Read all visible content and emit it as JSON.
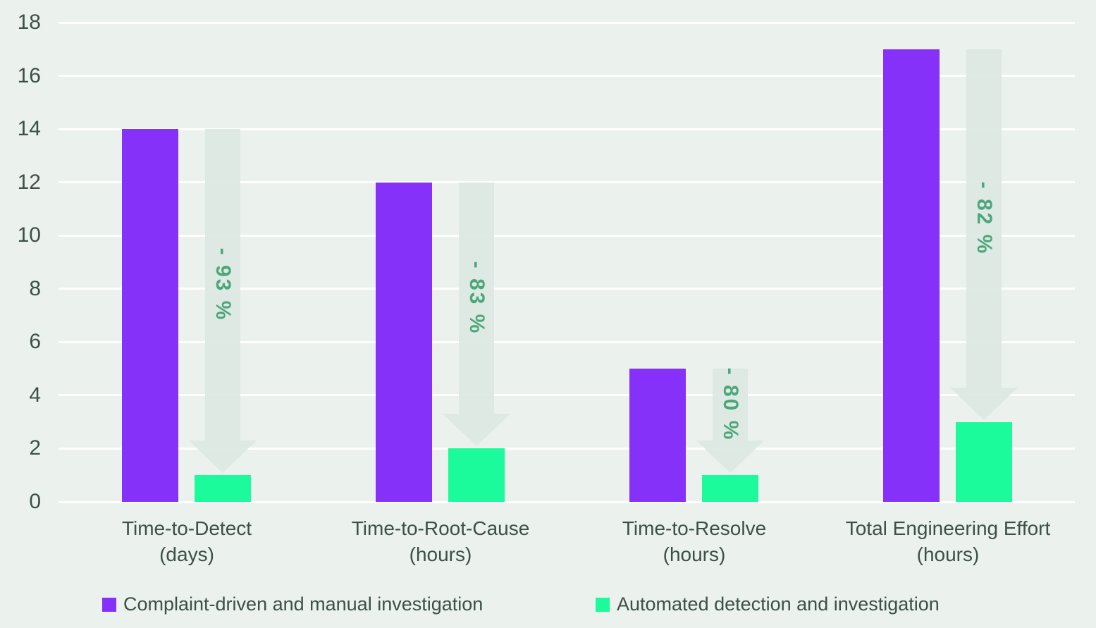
{
  "chart_data": {
    "type": "bar",
    "title": "",
    "categories": [
      {
        "line1": "Time-to-Detect",
        "line2": "(days)"
      },
      {
        "line1": "Time-to-Root-Cause",
        "line2": "(hours)"
      },
      {
        "line1": "Time-to-Resolve",
        "line2": "(hours)"
      },
      {
        "line1": "Total Engineering Effort",
        "line2": "(hours)"
      }
    ],
    "series": [
      {
        "name": "Complaint-driven and manual investigation",
        "color": "#8531FA",
        "values": [
          14,
          12,
          5,
          17
        ]
      },
      {
        "name": "Automated detection and investigation",
        "color": "#1BFB9B",
        "values": [
          1,
          2,
          1,
          3
        ]
      }
    ],
    "annotations": [
      {
        "label": "- 93 %"
      },
      {
        "label": "- 83 %"
      },
      {
        "label": "- 80 %"
      },
      {
        "label": "- 82 %"
      }
    ],
    "ylim": [
      0,
      18
    ],
    "ytick_step": 2,
    "yticks": [
      "0",
      "2",
      "4",
      "6",
      "8",
      "10",
      "12",
      "14",
      "16",
      "18"
    ],
    "xlabel": "",
    "ylabel": "",
    "grid": "horizontal-white-lines",
    "legend_position": "bottom",
    "colors": {
      "background": "#EBF1ED",
      "gridline": "#FFFFFF",
      "axis_text": "#3D5046",
      "arrow_fill": "#DDE8E2",
      "annotation_text": "#4BA77B"
    }
  }
}
